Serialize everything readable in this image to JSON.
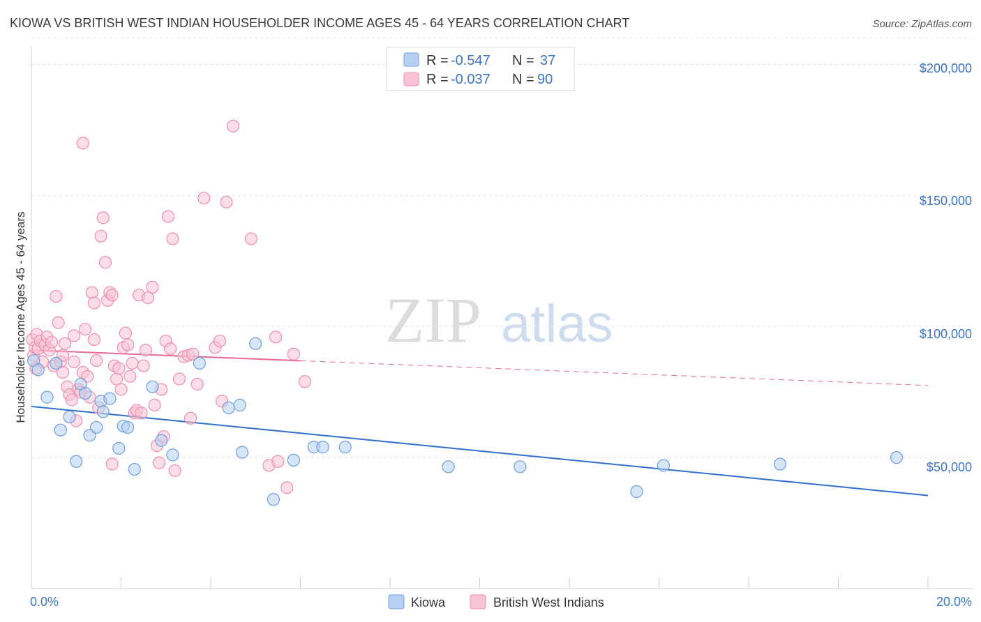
{
  "header": {
    "title": "KIOWA VS BRITISH WEST INDIAN HOUSEHOLDER INCOME AGES 45 - 64 YEARS CORRELATION CHART",
    "source": "Source: ZipAtlas.com"
  },
  "watermark": {
    "zip": "ZIP",
    "atlas": "atlas"
  },
  "colors": {
    "kiowa_fill": "#b7cff2",
    "kiowa_stroke": "#6f9fdc",
    "kiowa_line": "#2e6fce",
    "bwi_fill": "#f8c3d3",
    "bwi_stroke": "#ee8fab",
    "bwi_line": "#e8699a",
    "grid": "#e3e3e3",
    "axis_text": "#3b74c4"
  },
  "legend": {
    "rows": [
      {
        "r_label": "R = ",
        "r_value": "-0.547",
        "n_label": "N = ",
        "n_value": "37"
      },
      {
        "r_label": "R = ",
        "r_value": "-0.037",
        "n_label": "N = ",
        "n_value": "90"
      }
    ]
  },
  "bottom_legend": {
    "kiowa": "Kiowa",
    "bwi": "British West Indians"
  },
  "chart_data": {
    "type": "scatter",
    "title": "KIOWA VS BRITISH WEST INDIAN HOUSEHOLDER INCOME AGES 45 - 64 YEARS CORRELATION CHART",
    "xlabel": "",
    "ylabel": "Householder Income Ages 45 - 64 years",
    "xlim": [
      0,
      20
    ],
    "ylim": [
      0,
      210000
    ],
    "x_tick_labels": [
      "0.0%",
      "20.0%"
    ],
    "y_ticks": [
      50000,
      100000,
      150000,
      200000
    ],
    "y_tick_labels": [
      "$50,000",
      "$100,000",
      "$150,000",
      "$200,000"
    ],
    "grid": true,
    "legend_position": "top-center",
    "series": [
      {
        "name": "Kiowa",
        "r": -0.547,
        "n": 37,
        "trend": {
          "x0": 0,
          "y0": 69500,
          "x1": 20,
          "y1": 35500,
          "dashed_from": null
        },
        "points": [
          [
            0.05,
            87000
          ],
          [
            0.15,
            83500
          ],
          [
            0.35,
            73000
          ],
          [
            0.55,
            86000
          ],
          [
            0.65,
            60500
          ],
          [
            0.85,
            65500
          ],
          [
            1.0,
            48500
          ],
          [
            1.1,
            78000
          ],
          [
            1.2,
            74500
          ],
          [
            1.3,
            58500
          ],
          [
            1.45,
            61500
          ],
          [
            1.55,
            71500
          ],
          [
            1.6,
            67500
          ],
          [
            1.75,
            72500
          ],
          [
            1.95,
            53500
          ],
          [
            2.05,
            62000
          ],
          [
            2.15,
            61500
          ],
          [
            2.3,
            45500
          ],
          [
            2.7,
            77000
          ],
          [
            2.9,
            56500
          ],
          [
            3.15,
            51000
          ],
          [
            3.75,
            86000
          ],
          [
            4.4,
            69000
          ],
          [
            4.65,
            70000
          ],
          [
            4.7,
            52000
          ],
          [
            5.0,
            93500
          ],
          [
            5.4,
            34000
          ],
          [
            5.85,
            49000
          ],
          [
            6.3,
            54000
          ],
          [
            6.5,
            54000
          ],
          [
            7.0,
            54000
          ],
          [
            9.3,
            46500
          ],
          [
            10.9,
            46500
          ],
          [
            13.5,
            37000
          ],
          [
            14.1,
            47000
          ],
          [
            16.7,
            47500
          ],
          [
            19.3,
            50000
          ]
        ]
      },
      {
        "name": "British West Indians",
        "r": -0.037,
        "n": 90,
        "trend": {
          "x0": 0,
          "y0": 91000,
          "x1": 20,
          "y1": 77500,
          "dashed_from": 6
        },
        "points": [
          [
            0.02,
            95000
          ],
          [
            0.05,
            89000
          ],
          [
            0.08,
            92000
          ],
          [
            0.1,
            84000
          ],
          [
            0.12,
            97000
          ],
          [
            0.15,
            91500
          ],
          [
            0.2,
            94500
          ],
          [
            0.25,
            86500
          ],
          [
            0.3,
            93000
          ],
          [
            0.35,
            96000
          ],
          [
            0.4,
            91000
          ],
          [
            0.45,
            94000
          ],
          [
            0.5,
            85000
          ],
          [
            0.55,
            111500
          ],
          [
            0.6,
            101500
          ],
          [
            0.65,
            86500
          ],
          [
            0.7,
            82500
          ],
          [
            0.75,
            93500
          ],
          [
            0.8,
            77000
          ],
          [
            0.85,
            74000
          ],
          [
            0.9,
            72000
          ],
          [
            0.95,
            86500
          ],
          [
            1.0,
            64000
          ],
          [
            1.05,
            76000
          ],
          [
            1.1,
            75000
          ],
          [
            1.15,
            82500
          ],
          [
            1.2,
            99000
          ],
          [
            1.25,
            81000
          ],
          [
            1.3,
            73000
          ],
          [
            1.35,
            113000
          ],
          [
            1.4,
            109000
          ],
          [
            1.45,
            87000
          ],
          [
            1.5,
            69000
          ],
          [
            1.55,
            134500
          ],
          [
            1.6,
            141500
          ],
          [
            1.65,
            124500
          ],
          [
            1.7,
            110000
          ],
          [
            1.75,
            113000
          ],
          [
            1.8,
            112000
          ],
          [
            1.85,
            85000
          ],
          [
            1.9,
            80000
          ],
          [
            1.95,
            84000
          ],
          [
            2.0,
            76000
          ],
          [
            2.05,
            92000
          ],
          [
            2.1,
            97500
          ],
          [
            2.15,
            93000
          ],
          [
            2.2,
            81000
          ],
          [
            2.25,
            86000
          ],
          [
            2.3,
            67000
          ],
          [
            2.35,
            68000
          ],
          [
            2.4,
            112000
          ],
          [
            2.45,
            67000
          ],
          [
            2.5,
            85000
          ],
          [
            2.55,
            91000
          ],
          [
            2.6,
            111000
          ],
          [
            2.7,
            115000
          ],
          [
            2.75,
            70000
          ],
          [
            2.8,
            54500
          ],
          [
            2.85,
            48000
          ],
          [
            2.9,
            76000
          ],
          [
            2.95,
            58000
          ],
          [
            3.0,
            94500
          ],
          [
            3.05,
            142000
          ],
          [
            3.1,
            91500
          ],
          [
            3.15,
            133500
          ],
          [
            3.2,
            45000
          ],
          [
            3.3,
            80000
          ],
          [
            3.4,
            88500
          ],
          [
            3.5,
            89000
          ],
          [
            3.55,
            65000
          ],
          [
            3.6,
            89500
          ],
          [
            3.7,
            78000
          ],
          [
            3.85,
            149000
          ],
          [
            4.1,
            92000
          ],
          [
            4.2,
            94500
          ],
          [
            4.25,
            71500
          ],
          [
            4.35,
            147500
          ],
          [
            4.5,
            176500
          ],
          [
            4.9,
            133500
          ],
          [
            1.15,
            170000
          ],
          [
            5.3,
            47000
          ],
          [
            5.45,
            96000
          ],
          [
            5.5,
            48500
          ],
          [
            5.7,
            38500
          ],
          [
            5.85,
            89500
          ],
          [
            6.1,
            79000
          ],
          [
            1.4,
            95000
          ],
          [
            0.95,
            96500
          ],
          [
            0.7,
            89000
          ],
          [
            1.8,
            47500
          ]
        ]
      }
    ]
  }
}
